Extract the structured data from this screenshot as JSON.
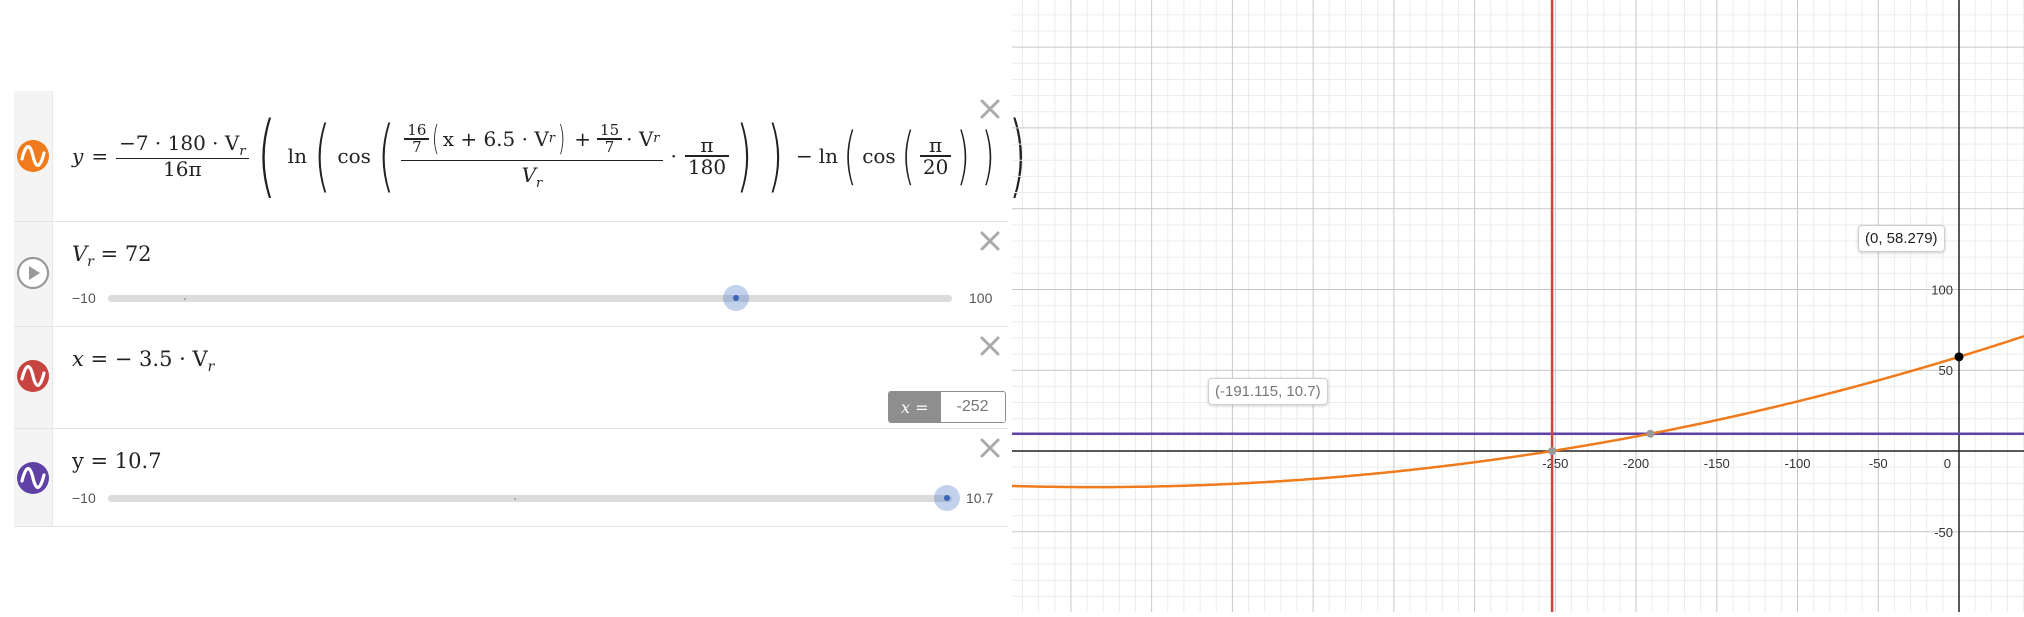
{
  "expressions": {
    "expr1": {
      "color": "#f07b1d",
      "icon": "wave-icon",
      "lhs": "y",
      "eq": "=",
      "outer_num": "−7 · 180 · V",
      "outer_den": "16π",
      "ln": "ln",
      "cos": "cos",
      "inner_frac_a_num": "16",
      "inner_frac_a_den": "7",
      "inner_paren": "x + 6.5 · V",
      "plus": "+",
      "inner_frac_b_num": "15",
      "inner_frac_b_den": "7",
      "inner_v": "· V",
      "big_den": "V",
      "dot": "·",
      "pi_num": "π",
      "pi_den": "180",
      "minus": "−",
      "pi20_num": "π",
      "pi20_den": "20",
      "subscript": "r"
    },
    "expr2": {
      "icon": "play-icon",
      "text": "V",
      "subscript": "r",
      "value_text": " = 72",
      "slider_min": "−10",
      "slider_max": "100",
      "slider_value": 72,
      "slider_range": [
        -10,
        100
      ]
    },
    "expr3": {
      "color": "#c74440",
      "icon": "wave-icon",
      "lhs": "x",
      "rhs": " =  − 3.5 · V",
      "subscript": "r",
      "label_name": "x =",
      "label_value": "-252"
    },
    "expr4": {
      "color": "#6042a6",
      "icon": "wave-icon",
      "text": "y = 10.7",
      "slider_min": "−10",
      "slider_max": "10.7",
      "slider_value": 10.7,
      "slider_range": [
        -10,
        10.7
      ]
    }
  },
  "graph": {
    "x_ticks": [
      "-250",
      "-200",
      "-150",
      "-100",
      "-50",
      "0"
    ],
    "y_ticks": [
      "100",
      "50",
      "-50"
    ],
    "points": [
      {
        "label": "(0, 58.279)",
        "x": 0,
        "y": 58.279,
        "color": "#000000"
      },
      {
        "label": "(-191.115, 10.7)",
        "x": -191.115,
        "y": 10.7,
        "color": "#999999"
      },
      {
        "label": "",
        "x": -252,
        "y": 0,
        "color": "#999999"
      }
    ],
    "vertical_line_x": -252,
    "horizontal_line_y": 10.7,
    "curve_color": "#f07b1d",
    "vline_color": "#c74440",
    "hline_color": "#6042a6"
  }
}
